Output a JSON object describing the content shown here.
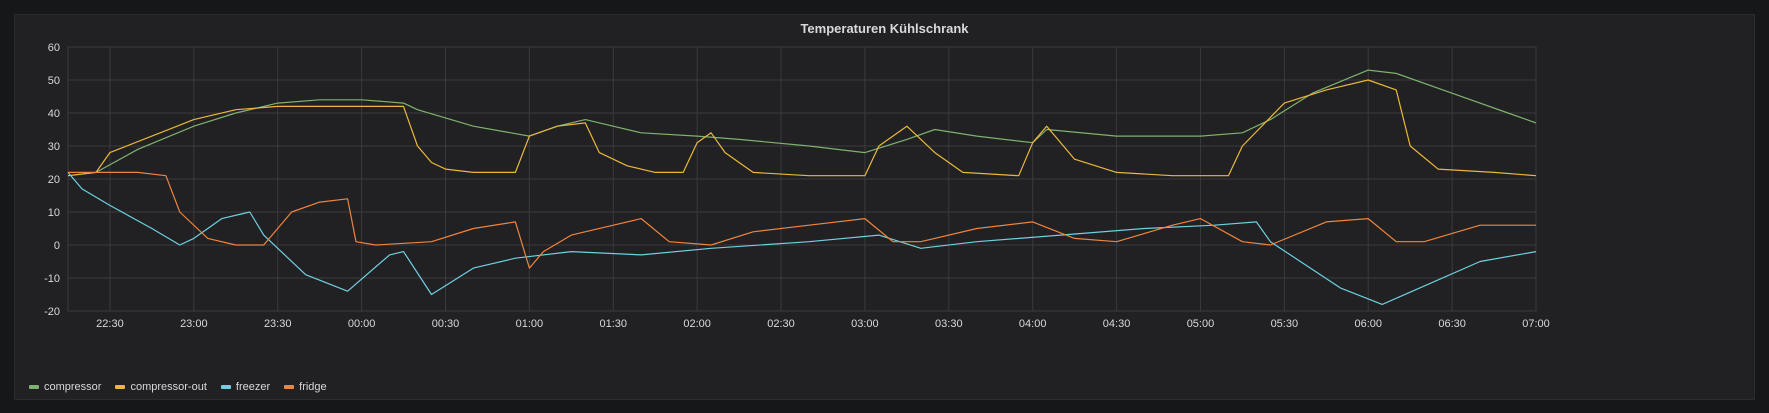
{
  "panel": {
    "title": "Temperaturen Kühlschrank"
  },
  "chart_data": {
    "type": "line",
    "title": "Temperaturen Kühlschrank",
    "xlabel": "",
    "ylabel": "",
    "x_range": [
      "22:15",
      "07:00"
    ],
    "ylim": [
      -20,
      60
    ],
    "grid": true,
    "legend": "bottom-left",
    "y_ticks": [
      60,
      50,
      40,
      30,
      20,
      10,
      0,
      -10,
      -20
    ],
    "x_ticks": [
      "22:30",
      "23:00",
      "23:30",
      "00:00",
      "00:30",
      "01:00",
      "01:30",
      "02:00",
      "02:30",
      "03:00",
      "03:30",
      "04:00",
      "04:30",
      "05:00",
      "05:30",
      "06:00",
      "06:30",
      "07:00"
    ],
    "series": [
      {
        "name": "compressor",
        "color": "#7eb26d",
        "points": [
          [
            "22:15",
            21
          ],
          [
            "22:25",
            22
          ],
          [
            "22:40",
            29
          ],
          [
            "23:00",
            36
          ],
          [
            "23:15",
            40
          ],
          [
            "23:30",
            43
          ],
          [
            "23:45",
            44
          ],
          [
            "00:00",
            44
          ],
          [
            "00:15",
            43
          ],
          [
            "00:20",
            41
          ],
          [
            "00:40",
            36
          ],
          [
            "01:00",
            33
          ],
          [
            "01:10",
            36
          ],
          [
            "01:20",
            38
          ],
          [
            "01:40",
            34
          ],
          [
            "02:00",
            33
          ],
          [
            "02:15",
            32
          ],
          [
            "02:40",
            30
          ],
          [
            "03:00",
            28
          ],
          [
            "03:15",
            32
          ],
          [
            "03:25",
            35
          ],
          [
            "03:40",
            33
          ],
          [
            "04:00",
            31
          ],
          [
            "04:05",
            35
          ],
          [
            "04:30",
            33
          ],
          [
            "05:00",
            33
          ],
          [
            "05:15",
            34
          ],
          [
            "05:25",
            38
          ],
          [
            "05:40",
            46
          ],
          [
            "06:00",
            53
          ],
          [
            "06:10",
            52
          ],
          [
            "06:30",
            46
          ],
          [
            "06:50",
            40
          ],
          [
            "07:00",
            37
          ]
        ]
      },
      {
        "name": "compressor-out",
        "color": "#eab839",
        "points": [
          [
            "22:15",
            21
          ],
          [
            "22:25",
            22
          ],
          [
            "22:30",
            28
          ],
          [
            "22:45",
            33
          ],
          [
            "23:00",
            38
          ],
          [
            "23:15",
            41
          ],
          [
            "23:30",
            42
          ],
          [
            "23:45",
            42
          ],
          [
            "00:00",
            42
          ],
          [
            "00:15",
            42
          ],
          [
            "00:20",
            30
          ],
          [
            "00:25",
            25
          ],
          [
            "00:30",
            23
          ],
          [
            "00:40",
            22
          ],
          [
            "00:55",
            22
          ],
          [
            "01:00",
            33
          ],
          [
            "01:10",
            36
          ],
          [
            "01:20",
            37
          ],
          [
            "01:25",
            28
          ],
          [
            "01:35",
            24
          ],
          [
            "01:45",
            22
          ],
          [
            "01:55",
            22
          ],
          [
            "02:00",
            31
          ],
          [
            "02:05",
            34
          ],
          [
            "02:10",
            28
          ],
          [
            "02:20",
            22
          ],
          [
            "02:40",
            21
          ],
          [
            "03:00",
            21
          ],
          [
            "03:05",
            30
          ],
          [
            "03:15",
            36
          ],
          [
            "03:25",
            28
          ],
          [
            "03:35",
            22
          ],
          [
            "03:55",
            21
          ],
          [
            "04:00",
            31
          ],
          [
            "04:05",
            36
          ],
          [
            "04:15",
            26
          ],
          [
            "04:30",
            22
          ],
          [
            "04:50",
            21
          ],
          [
            "05:10",
            21
          ],
          [
            "05:15",
            30
          ],
          [
            "05:30",
            43
          ],
          [
            "05:45",
            47
          ],
          [
            "06:00",
            50
          ],
          [
            "06:10",
            47
          ],
          [
            "06:15",
            30
          ],
          [
            "06:25",
            23
          ],
          [
            "06:45",
            22
          ],
          [
            "07:00",
            21
          ]
        ]
      },
      {
        "name": "freezer",
        "color": "#6ed0e0",
        "points": [
          [
            "22:15",
            22
          ],
          [
            "22:20",
            17
          ],
          [
            "22:30",
            12
          ],
          [
            "22:45",
            5
          ],
          [
            "22:55",
            0
          ],
          [
            "23:00",
            2
          ],
          [
            "23:10",
            8
          ],
          [
            "23:20",
            10
          ],
          [
            "23:25",
            3
          ],
          [
            "23:40",
            -9
          ],
          [
            "23:55",
            -14
          ],
          [
            "00:10",
            -3
          ],
          [
            "00:15",
            -2
          ],
          [
            "00:25",
            -15
          ],
          [
            "00:40",
            -7
          ],
          [
            "00:55",
            -4
          ],
          [
            "01:15",
            -2
          ],
          [
            "01:40",
            -3
          ],
          [
            "02:05",
            -1
          ],
          [
            "02:40",
            1
          ],
          [
            "03:05",
            3
          ],
          [
            "03:20",
            -1
          ],
          [
            "03:40",
            1
          ],
          [
            "04:10",
            3
          ],
          [
            "04:40",
            5
          ],
          [
            "05:05",
            6
          ],
          [
            "05:20",
            7
          ],
          [
            "05:25",
            1
          ],
          [
            "05:50",
            -13
          ],
          [
            "06:05",
            -18
          ],
          [
            "06:40",
            -5
          ],
          [
            "07:00",
            -2
          ]
        ]
      },
      {
        "name": "fridge",
        "color": "#ef843c",
        "points": [
          [
            "22:15",
            22
          ],
          [
            "22:40",
            22
          ],
          [
            "22:50",
            21
          ],
          [
            "22:55",
            10
          ],
          [
            "23:05",
            2
          ],
          [
            "23:15",
            0
          ],
          [
            "23:25",
            0
          ],
          [
            "23:35",
            10
          ],
          [
            "23:45",
            13
          ],
          [
            "23:55",
            14
          ],
          [
            "23:58",
            1
          ],
          [
            "00:05",
            0
          ],
          [
            "00:25",
            1
          ],
          [
            "00:40",
            5
          ],
          [
            "00:55",
            7
          ],
          [
            "01:00",
            -7
          ],
          [
            "01:05",
            -2
          ],
          [
            "01:15",
            3
          ],
          [
            "01:30",
            6
          ],
          [
            "01:40",
            8
          ],
          [
            "01:50",
            1
          ],
          [
            "02:05",
            0
          ],
          [
            "02:20",
            4
          ],
          [
            "02:40",
            6
          ],
          [
            "03:00",
            8
          ],
          [
            "03:10",
            1
          ],
          [
            "03:20",
            1
          ],
          [
            "03:40",
            5
          ],
          [
            "04:00",
            7
          ],
          [
            "04:15",
            2
          ],
          [
            "04:30",
            1
          ],
          [
            "04:50",
            6
          ],
          [
            "05:00",
            8
          ],
          [
            "05:15",
            1
          ],
          [
            "05:25",
            0
          ],
          [
            "05:45",
            7
          ],
          [
            "06:00",
            8
          ],
          [
            "06:10",
            1
          ],
          [
            "06:20",
            1
          ],
          [
            "06:40",
            6
          ],
          [
            "07:00",
            6
          ]
        ]
      }
    ]
  }
}
